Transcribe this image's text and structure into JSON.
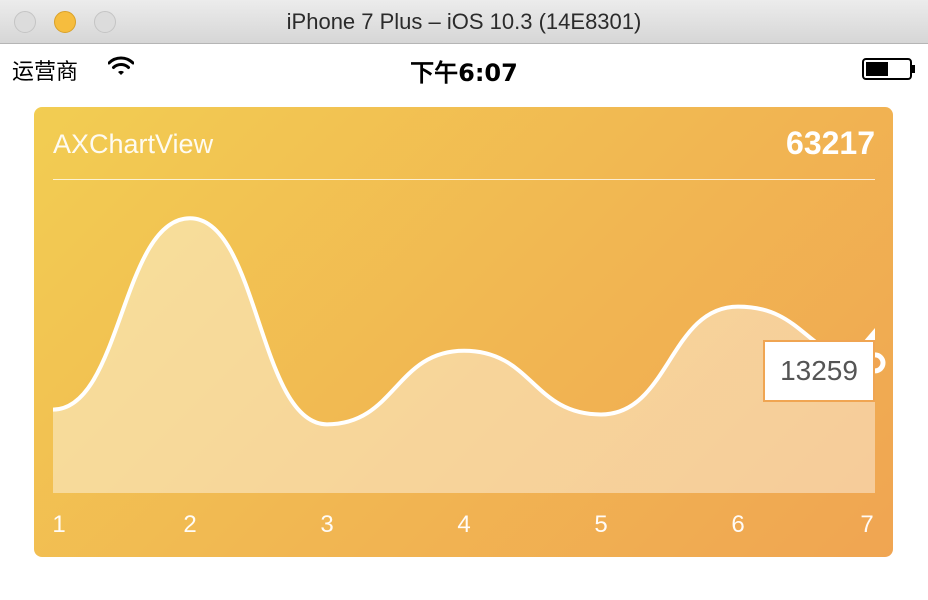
{
  "window": {
    "title": "iPhone 7 Plus – iOS 10.3 (14E8301)"
  },
  "status_bar": {
    "carrier": "运营商",
    "time": "下午6:07",
    "icons": [
      "wifi-icon",
      "battery-icon"
    ]
  },
  "card": {
    "title": "AXChartView",
    "total": "63217",
    "tooltip_value": "13259",
    "colors": {
      "gradient_start": "#f2cd52",
      "gradient_end": "#f0a552",
      "line": "#ffffff",
      "marker_fill": "#f0a552"
    }
  },
  "chart_data": {
    "type": "area",
    "x": [
      "1",
      "2",
      "3",
      "4",
      "5",
      "6",
      "7"
    ],
    "values": [
      8500,
      28000,
      7000,
      14500,
      8000,
      19000,
      13259
    ],
    "smooth": true,
    "highlighted_index": 6
  }
}
